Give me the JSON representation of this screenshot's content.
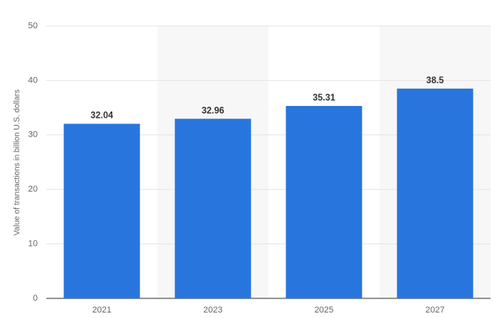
{
  "chart_data": {
    "type": "bar",
    "y_label": "Value of transactions in billion U.S. dollars",
    "categories": [
      "2021",
      "2023",
      "2025",
      "2027"
    ],
    "values": [
      32.04,
      32.96,
      35.31,
      38.5
    ],
    "color": "#2876dd",
    "ylim": [
      0,
      50
    ],
    "yticks": [
      0,
      10,
      20,
      30,
      40,
      50
    ],
    "grid": true
  }
}
